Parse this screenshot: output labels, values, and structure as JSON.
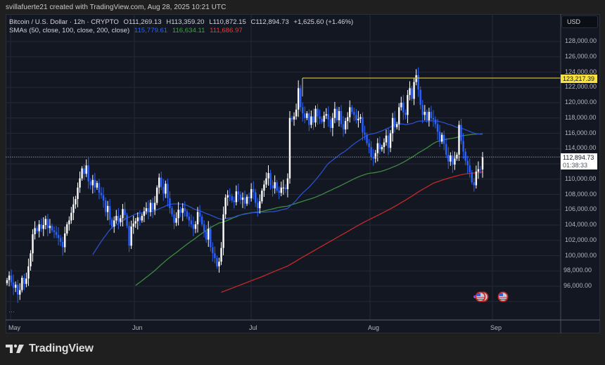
{
  "credit": "svillafuerte21 created with TradingView.com, Aug 28, 2025 10:21 UTC",
  "legend": {
    "symbol": "Bitcoin / U.S. Dollar · 12h · CRYPTO",
    "open": "O111,269.13",
    "high": "H113,359.20",
    "low": "L110,872.15",
    "close": "C112,894.73",
    "change": "+1,625.60 (+1.46%)",
    "sma_label": "SMAs (50, close, 100, close, 200, close)",
    "sma50": "115,779.61",
    "sma100": "116,634.11",
    "sma200": "111,686.97"
  },
  "currency": "USD",
  "colors": {
    "background": "#131722",
    "outer": "#1f1f1f",
    "grid": "#242836",
    "up_candle": "#ffffff",
    "down_candle": "#2962ff",
    "sma50": "#2b50c8",
    "sma100": "#3d8a3f",
    "sma200": "#c62828",
    "resistance": "#c9b93a",
    "resistance_label": "#f9e23c"
  },
  "price_axis": {
    "labels": [
      "128,000.00",
      "126,000.00",
      "124,000.00",
      "122,000.00",
      "120,000.00",
      "118,000.00",
      "116,000.00",
      "114,000.00",
      "110,000.00",
      "108,000.00",
      "106,000.00",
      "104,000.00",
      "102,000.00",
      "100,000.00",
      "98,000.00",
      "96,000.00"
    ],
    "highlight_label": "123,217.39",
    "current_price": "112,894.73",
    "countdown": "01:38:33"
  },
  "time_axis": {
    "labels": [
      "May",
      "Jun",
      "Jul",
      "Aug",
      "Sep"
    ]
  },
  "more_dots": "···",
  "brand": "TradingView",
  "chart_data": {
    "type": "candlestick",
    "title": "Bitcoin / U.S. Dollar · 12h · CRYPTO",
    "xlabel": "",
    "ylabel": "USD",
    "ylim": [
      94000,
      129500
    ],
    "x_range": [
      "2025-04-29",
      "2025-09-08"
    ],
    "x_ticks": [
      "May",
      "Jun",
      "Jul",
      "Aug",
      "Sep"
    ],
    "grid": true,
    "legend_position": "top-left",
    "annotations": [
      {
        "type": "hline",
        "label": "123,217.39",
        "value": 123217.39,
        "from": "2025-07-14"
      },
      {
        "type": "price_marker",
        "label": "112,894.73",
        "value": 112894.73
      }
    ],
    "last_candle": {
      "open": 111269.13,
      "high": 113359.2,
      "low": 110872.15,
      "close": 112894.73,
      "change": 1625.6,
      "change_pct": 1.46
    },
    "sma_last": {
      "sma50": 115779.61,
      "sma100": 116634.11,
      "sma200": 111686.97
    },
    "closes": [
      96800,
      97400,
      96500,
      95800,
      96200,
      94900,
      95500,
      97100,
      96300,
      97000,
      98600,
      100300,
      102800,
      103600,
      103200,
      104100,
      103500,
      104000,
      104800,
      103600,
      103900,
      103300,
      103100,
      102700,
      102300,
      101800,
      101100,
      102900,
      104100,
      104600,
      105600,
      106700,
      107400,
      108900,
      110100,
      111400,
      110700,
      111800,
      109700,
      109200,
      109900,
      108900,
      109500,
      108200,
      107900,
      107200,
      105700,
      106500,
      104700,
      103800,
      104600,
      105200,
      104400,
      104900,
      106100,
      105300,
      103900,
      101300,
      103800,
      104200,
      104500,
      105000,
      104600,
      105200,
      105800,
      106200,
      105700,
      106900,
      106000,
      106900,
      108900,
      110200,
      109000,
      108100,
      109400,
      107500,
      106200,
      105400,
      104300,
      104900,
      106000,
      105600,
      106200,
      105800,
      105100,
      104600,
      104100,
      103500,
      104100,
      105700,
      105100,
      104100,
      103200,
      102100,
      103500,
      101100,
      100300,
      99700,
      98600,
      99200,
      101000,
      105400,
      107600,
      107900,
      107800,
      107200,
      107000,
      108400,
      108000,
      107300,
      107600,
      106800,
      107700,
      107500,
      108700,
      108300,
      106900,
      106200,
      107100,
      108500,
      109300,
      110100,
      110800,
      109200,
      108800,
      109600,
      108500,
      108200,
      108900,
      108900,
      108700,
      110100,
      118000,
      117800,
      118200,
      119100,
      121900,
      119400,
      118600,
      118000,
      118600,
      117100,
      118200,
      117400,
      119200,
      118200,
      117900,
      117500,
      118300,
      118500,
      117800,
      116700,
      118000,
      119200,
      117700,
      118900,
      117200,
      116500,
      117600,
      118100,
      119400,
      118800,
      118400,
      117700,
      117900,
      118100,
      116100,
      115800,
      114700,
      114200,
      112900,
      112700,
      113400,
      114700,
      113900,
      114200,
      114800,
      115700,
      114100,
      116000,
      118000,
      116800,
      117200,
      119400,
      120000,
      118700,
      118400,
      121000,
      121900,
      120500,
      122700,
      123600,
      121700,
      119700,
      118400,
      118800,
      117700,
      118800,
      118000,
      117800,
      117200,
      116200,
      114900,
      115800,
      114600,
      113200,
      112300,
      113100,
      111900,
      112700,
      113200,
      117100,
      115000,
      113600,
      112400,
      111800,
      110900,
      109600,
      109200,
      111000,
      111300,
      111270,
      112895
    ],
    "series": [
      {
        "name": "SMA 50",
        "color": "#2962ff",
        "last": 115779.61
      },
      {
        "name": "SMA 100",
        "color": "#43a047",
        "last": 116634.11
      },
      {
        "name": "SMA 200",
        "color": "#e53935",
        "last": 111686.97
      }
    ]
  }
}
